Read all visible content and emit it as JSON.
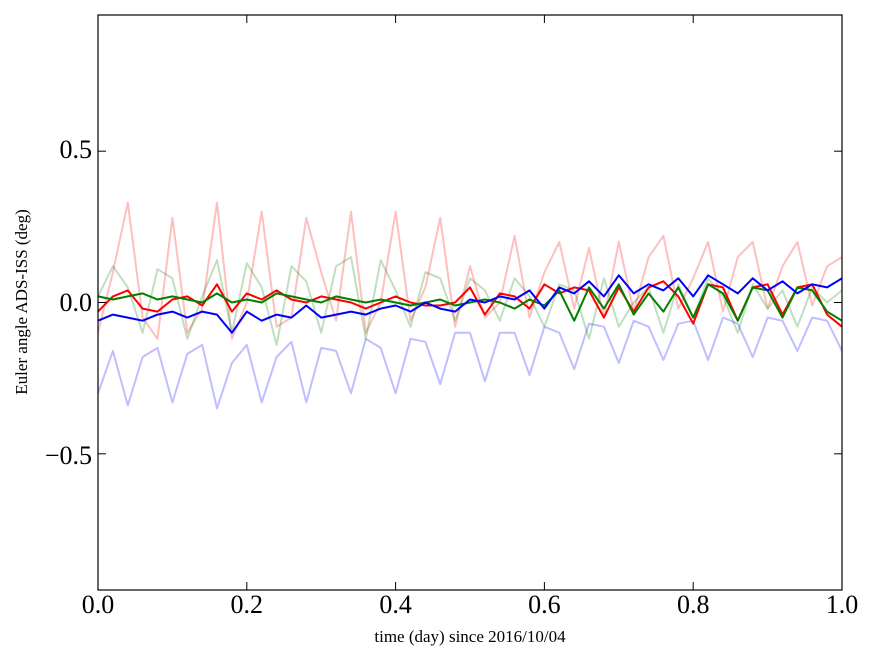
{
  "chart_data": {
    "type": "line",
    "xlabel": "time (day) since 2016/10/04",
    "ylabel": "Euler angle ADS-ISS (deg)",
    "xlim": [
      0.0,
      1.0
    ],
    "ylim": [
      -0.95,
      0.95
    ],
    "x_ticks": [
      0.0,
      0.2,
      0.4,
      0.6,
      0.8,
      1.0
    ],
    "x_tick_labels": [
      "0.0",
      "0.2",
      "0.4",
      "0.6",
      "0.8",
      "1.0"
    ],
    "y_ticks": [
      -0.5,
      0.0,
      0.5
    ],
    "y_tick_labels": [
      "−0.5",
      "0.0",
      "0.5"
    ],
    "grid": false,
    "legend": "none",
    "x": [
      0.0,
      0.02,
      0.04,
      0.06,
      0.08,
      0.1,
      0.12,
      0.14,
      0.16,
      0.18,
      0.2,
      0.22,
      0.24,
      0.26,
      0.28,
      0.3,
      0.32,
      0.34,
      0.36,
      0.38,
      0.4,
      0.42,
      0.44,
      0.46,
      0.48,
      0.5,
      0.52,
      0.54,
      0.56,
      0.58,
      0.6,
      0.62,
      0.64,
      0.66,
      0.68,
      0.7,
      0.72,
      0.74,
      0.76,
      0.78,
      0.8,
      0.82,
      0.84,
      0.86,
      0.88,
      0.9,
      0.92,
      0.94,
      0.96,
      0.98,
      1.0
    ],
    "series": [
      {
        "color": "#ff0000",
        "opacity": 1.0,
        "values": [
          -0.03,
          0.02,
          0.04,
          -0.02,
          -0.03,
          0.01,
          0.02,
          -0.01,
          0.06,
          -0.03,
          0.03,
          0.01,
          0.04,
          0.01,
          0.0,
          0.02,
          0.01,
          0.0,
          -0.02,
          0.0,
          0.02,
          0.0,
          -0.01,
          -0.01,
          0.0,
          0.05,
          -0.04,
          0.03,
          0.02,
          -0.02,
          0.06,
          0.03,
          0.05,
          0.04,
          -0.05,
          0.05,
          -0.03,
          0.05,
          0.07,
          0.02,
          -0.07,
          0.06,
          0.05,
          -0.06,
          0.05,
          0.06,
          -0.04,
          0.05,
          0.06,
          -0.04,
          -0.08
        ]
      },
      {
        "color": "#008000",
        "opacity": 1.0,
        "values": [
          0.02,
          0.01,
          0.02,
          0.03,
          0.01,
          0.02,
          0.01,
          0.0,
          0.03,
          0.0,
          0.01,
          0.0,
          0.03,
          0.02,
          0.01,
          0.0,
          0.02,
          0.01,
          0.0,
          0.01,
          0.0,
          -0.01,
          0.0,
          0.01,
          -0.01,
          0.0,
          0.01,
          0.0,
          -0.02,
          0.01,
          -0.01,
          0.04,
          -0.06,
          0.05,
          -0.02,
          0.06,
          -0.04,
          0.03,
          -0.03,
          0.05,
          -0.05,
          0.06,
          0.03,
          -0.06,
          0.05,
          0.04,
          -0.05,
          0.05,
          0.04,
          -0.03,
          -0.06
        ]
      },
      {
        "color": "#0000ff",
        "opacity": 1.0,
        "values": [
          -0.06,
          -0.04,
          -0.05,
          -0.06,
          -0.04,
          -0.03,
          -0.05,
          -0.03,
          -0.04,
          -0.1,
          -0.03,
          -0.06,
          -0.04,
          -0.05,
          -0.01,
          -0.05,
          -0.04,
          -0.03,
          -0.04,
          -0.02,
          -0.01,
          -0.03,
          0.0,
          -0.02,
          -0.03,
          0.01,
          0.0,
          0.02,
          0.01,
          0.04,
          -0.02,
          0.05,
          0.03,
          0.07,
          0.02,
          0.09,
          0.03,
          0.06,
          0.04,
          0.08,
          0.02,
          0.09,
          0.06,
          0.03,
          0.08,
          0.04,
          0.07,
          0.03,
          0.06,
          0.05,
          0.08
        ]
      },
      {
        "color": "#ff0000",
        "opacity": 0.25,
        "values": [
          -0.1,
          0.1,
          0.33,
          -0.05,
          -0.12,
          0.28,
          -0.1,
          -0.02,
          0.33,
          -0.12,
          0.0,
          0.3,
          -0.08,
          -0.05,
          0.28,
          0.1,
          -0.06,
          0.3,
          -0.1,
          0.0,
          0.3,
          -0.06,
          0.05,
          0.28,
          -0.08,
          0.12,
          -0.05,
          0.0,
          0.22,
          -0.05,
          0.1,
          0.2,
          -0.02,
          0.18,
          -0.05,
          0.2,
          -0.03,
          0.15,
          0.22,
          -0.02,
          0.08,
          0.2,
          -0.03,
          0.15,
          0.2,
          -0.02,
          0.12,
          0.2,
          -0.01,
          0.12,
          0.15
        ]
      },
      {
        "color": "#008000",
        "opacity": 0.25,
        "values": [
          0.02,
          0.12,
          0.05,
          -0.1,
          0.11,
          0.08,
          -0.12,
          0.02,
          0.14,
          -0.1,
          0.13,
          0.05,
          -0.14,
          0.12,
          0.07,
          -0.1,
          0.12,
          0.15,
          -0.12,
          0.14,
          0.04,
          -0.08,
          0.1,
          0.08,
          -0.06,
          0.08,
          0.04,
          -0.06,
          0.08,
          0.02,
          -0.08,
          0.06,
          0.04,
          -0.12,
          0.08,
          -0.08,
          0.0,
          0.05,
          -0.1,
          0.06,
          -0.05,
          0.08,
          0.02,
          -0.1,
          0.06,
          -0.02,
          0.04,
          -0.08,
          0.05,
          0.0,
          0.04
        ]
      },
      {
        "color": "#0000ff",
        "opacity": 0.25,
        "values": [
          -0.3,
          -0.16,
          -0.34,
          -0.18,
          -0.15,
          -0.33,
          -0.17,
          -0.14,
          -0.35,
          -0.2,
          -0.14,
          -0.33,
          -0.18,
          -0.13,
          -0.33,
          -0.15,
          -0.16,
          -0.3,
          -0.12,
          -0.15,
          -0.3,
          -0.12,
          -0.13,
          -0.27,
          -0.1,
          -0.1,
          -0.26,
          -0.1,
          -0.1,
          -0.24,
          -0.08,
          -0.1,
          -0.22,
          -0.07,
          -0.08,
          -0.2,
          -0.06,
          -0.08,
          -0.19,
          -0.07,
          -0.06,
          -0.19,
          -0.05,
          -0.07,
          -0.18,
          -0.05,
          -0.06,
          -0.16,
          -0.05,
          -0.06,
          -0.16
        ]
      }
    ]
  }
}
